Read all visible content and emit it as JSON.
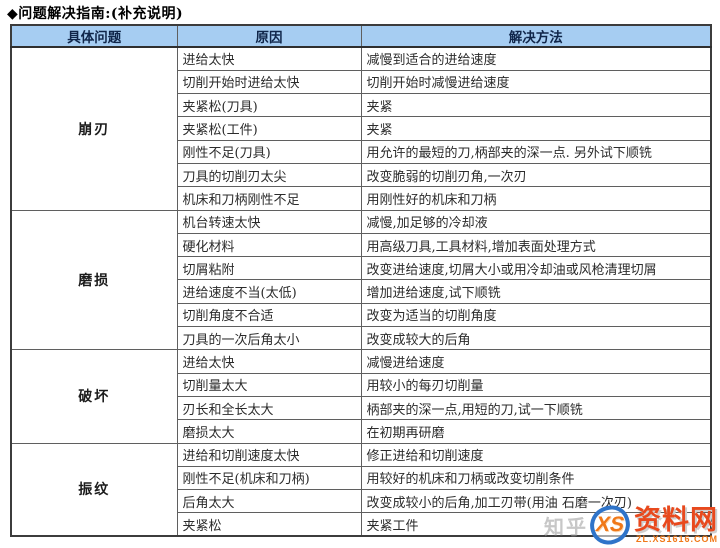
{
  "page": {
    "title": "◆问题解决指南:(补充说明)"
  },
  "colors": {
    "header_bg": "#a6cdf2",
    "header_text": "#10264a",
    "border": "#5f5f5f",
    "outer_border": "#3c3c3c",
    "body_text": "#2b2b2b",
    "watermark_orange": "#f07818",
    "watermark_red": "#e8491d",
    "watermark_blue": "#2f74c9"
  },
  "watermark": {
    "zhihu_text": "知乎",
    "logo_text": "XS",
    "site_name": "资料网",
    "site_url": "ZL.XS1616.COM"
  },
  "table": {
    "headers": [
      "具体问题",
      "原因",
      "解决方法"
    ],
    "groups": [
      {
        "problem": "崩刃",
        "rows": [
          {
            "cause": "进给太快",
            "solution": "减慢到适合的进给速度"
          },
          {
            "cause": "切削开始时进给太快",
            "solution": "切削开始时减慢进给速度"
          },
          {
            "cause": "夹紧松(刀具)",
            "solution": "夹紧"
          },
          {
            "cause": "夹紧松(工件)",
            "solution": "夹紧"
          },
          {
            "cause": "刚性不足(刀具)",
            "solution": "用允许的最短的刀,柄部夹的深一点. 另外试下顺铣"
          },
          {
            "cause": "刀具的切削刃太尖",
            "solution": "改变脆弱的切削刃角,一次刃"
          },
          {
            "cause": "机床和刀柄刚性不足",
            "solution": "用刚性好的机床和刀柄"
          }
        ]
      },
      {
        "problem": "磨损",
        "rows": [
          {
            "cause": "机台转速太快",
            "solution": "减慢,加足够的冷却液"
          },
          {
            "cause": "硬化材料",
            "solution": "用高级刀具,工具材料,增加表面处理方式"
          },
          {
            "cause": "切屑粘附",
            "solution": "改变进给速度,切屑大小或用冷却油或风枪清理切屑"
          },
          {
            "cause": "进给速度不当(太低)",
            "solution": "增加进给速度,试下顺铣"
          },
          {
            "cause": "切削角度不合适",
            "solution": "改变为适当的切削角度"
          },
          {
            "cause": "刀具的一次后角太小",
            "solution": "改变成较大的后角"
          }
        ]
      },
      {
        "problem": "破坏",
        "rows": [
          {
            "cause": "进给太快",
            "solution": "减慢进给速度"
          },
          {
            "cause": "切削量太大",
            "solution": "用较小的每刃切削量"
          },
          {
            "cause": "刃长和全长太大",
            "solution": "柄部夹的深一点,用短的刀,试一下顺铣"
          },
          {
            "cause": "磨损太大",
            "solution": "在初期再研磨"
          }
        ]
      },
      {
        "problem": "振纹",
        "rows": [
          {
            "cause": "进给和切削速度太快",
            "solution": "修正进给和切削速度"
          },
          {
            "cause": "刚性不足(机床和刀柄)",
            "solution": "用较好的机床和刀柄或改变切削条件"
          },
          {
            "cause": "后角太大",
            "solution": "改变成较小的后角,加工刃带(用油 石磨一次刃)"
          },
          {
            "cause": "夹紧松",
            "solution": "夹紧工件"
          }
        ]
      }
    ]
  }
}
